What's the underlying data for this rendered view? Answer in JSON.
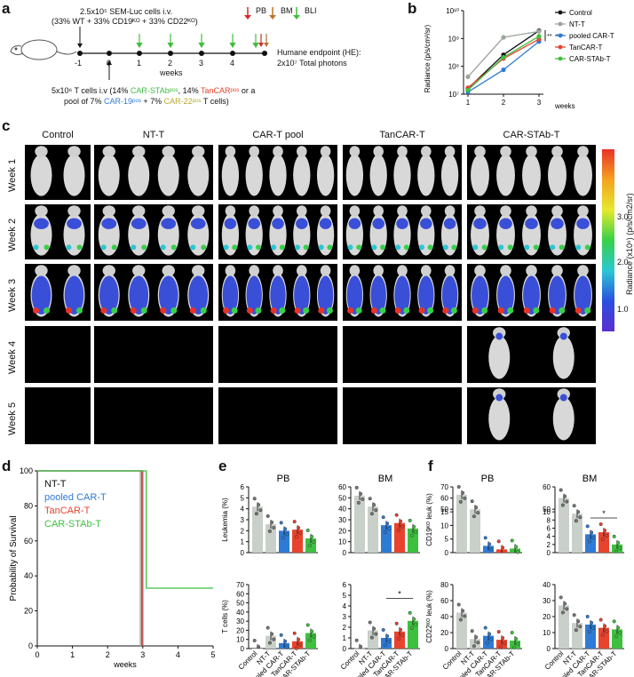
{
  "labels": {
    "a": "a",
    "b": "b",
    "c": "c",
    "d": "d",
    "e": "e",
    "f": "f"
  },
  "schema": {
    "cells_line1": "2.5x10⁵ SEM-Luc cells i.v.",
    "cells_line2": "(33% WT + 33% CD19ᴷᴼ + 33% CD22ᴷᴼ)",
    "legend_pb": "PB",
    "legend_bm": "BM",
    "legend_bli": "BLI",
    "ticks": [
      "-1",
      "0",
      "1",
      "2",
      "3",
      "4"
    ],
    "weeks": "weeks",
    "endpoint_line1": "Humane endpoint (HE):",
    "endpoint_line2": "2x10⁷ Total photons",
    "tcells_line1_a": "5x10⁶ T cells i.v (14% ",
    "tcells_line1_b": "CAR-STAbᵖᵒˢ",
    "tcells_line1_c": ", 14% ",
    "tcells_line1_d": "TanCARᵖᵒˢ",
    "tcells_line1_e": " or a",
    "tcells_line2_a": "pool of 7% ",
    "tcells_line2_b": "CAR-19ᵖᵒˢ",
    "tcells_line2_c": " + 7% ",
    "tcells_line2_d": "CAR-22ᵖᵒˢ",
    "tcells_line2_e": " T cells)"
  },
  "colors": {
    "control": "#111111",
    "ntt": "#9aa59a",
    "pooled": "#2e7bd6",
    "tancar": "#e8432e",
    "carstab": "#3fbf3f",
    "grey_bar": "#c9cfc9",
    "pb_arrow": "#d62b2b",
    "bm_arrow": "#b8762e",
    "bli_arrow": "#3fbf3f"
  },
  "panel_c": {
    "columns": [
      "Control",
      "NT-T",
      "CAR-T pool",
      "TanCAR-T",
      "CAR-STAb-T"
    ],
    "rows": [
      "Week 1",
      "Week 2",
      "Week 3",
      "Week 4",
      "Week 5"
    ],
    "colorbar_label": "Radiance (x10⁶) (p/s/cm2/sr)",
    "colorbar_ticks": [
      "3.0",
      "2.0",
      "1.0"
    ]
  },
  "chart_data": [
    {
      "id": "b",
      "type": "line",
      "ylabel": "Radiance (p/s/cm²/sr)",
      "xlabel": "weeks",
      "x": [
        1,
        2,
        3
      ],
      "y_scale": "log",
      "ylim": [
        10000000.0,
        10000000000.0
      ],
      "y_ticks": [
        "10⁷",
        "10⁸",
        "10⁹",
        "10¹⁰"
      ],
      "x_ticks": [
        "1",
        "2",
        "3"
      ],
      "series": [
        {
          "name": "Control",
          "values": [
            16000000.0,
            260000000.0,
            1900000000.0
          ]
        },
        {
          "name": "NT-T",
          "values": [
            42000000.0,
            1100000000.0,
            1800000000.0
          ]
        },
        {
          "name": "pooled CAR-T",
          "values": [
            12000000.0,
            75000000.0,
            780000000.0
          ]
        },
        {
          "name": "TanCAR-T",
          "values": [
            17000000.0,
            190000000.0,
            950000000.0
          ]
        },
        {
          "name": "CAR-STAb-T",
          "values": [
            14000000.0,
            210000000.0,
            1200000000.0
          ]
        }
      ],
      "annotations": [
        "**",
        "***"
      ]
    },
    {
      "id": "d",
      "type": "line",
      "ylabel": "Probability of Survival",
      "xlabel": "weeks",
      "xlim": [
        0,
        5
      ],
      "ylim": [
        0,
        100
      ],
      "x_ticks": [
        "0",
        "1",
        "2",
        "3",
        "4",
        "5"
      ],
      "y_ticks": [
        "0",
        "20",
        "40",
        "60",
        "80",
        "100"
      ],
      "series": [
        {
          "name": "NT-T",
          "values": [
            [
              0,
              100
            ],
            [
              2.93,
              100
            ],
            [
              2.93,
              0
            ]
          ]
        },
        {
          "name": "pooled CAR-T",
          "values": [
            [
              0,
              100
            ],
            [
              2.97,
              100
            ],
            [
              2.97,
              0
            ]
          ]
        },
        {
          "name": "TanCAR-T",
          "values": [
            [
              0,
              100
            ],
            [
              3.0,
              100
            ],
            [
              3.0,
              0
            ]
          ]
        },
        {
          "name": "CAR-STAb-T",
          "values": [
            [
              0,
              100
            ],
            [
              3.1,
              100
            ],
            [
              3.1,
              33
            ],
            [
              5,
              33
            ]
          ]
        }
      ]
    },
    {
      "id": "e-pb-leuk",
      "type": "bar",
      "title": "PB",
      "ylabel": "Leukemia (%)",
      "categories": [
        "Control",
        "NT-T",
        "pooled CAR-T",
        "TanCAR-T",
        "CAR-STAb-T"
      ],
      "values": [
        4.2,
        2.6,
        2.0,
        2.1,
        1.3
      ],
      "ylim": [
        0,
        6
      ],
      "y_ticks": [
        "0",
        "1",
        "2",
        "3",
        "4",
        "5",
        "6"
      ]
    },
    {
      "id": "e-bm-leuk",
      "type": "bar",
      "title": "BM",
      "ylabel": "",
      "categories": [
        "Control",
        "NT-T",
        "pooled CAR-T",
        "TanCAR-T",
        "CAR-STAb-T"
      ],
      "values": [
        52,
        42,
        25,
        27,
        22
      ],
      "ylim": [
        0,
        60
      ],
      "y_ticks": [
        "0",
        "10",
        "20",
        "30",
        "40",
        "50",
        "60"
      ]
    },
    {
      "id": "e-pb-tcell",
      "type": "bar",
      "title": "",
      "ylabel": "T cells (%)",
      "categories": [
        "Control",
        "NT-T",
        "pooled CAR-T",
        "TanCAR-T",
        "CAR-STAb-T"
      ],
      "values": [
        0,
        14,
        6,
        8,
        17
      ],
      "ylim": [
        0,
        70
      ],
      "y_ticks": [
        "0",
        "10",
        "20",
        "30",
        "40",
        "50",
        "60",
        "70"
      ]
    },
    {
      "id": "e-bm-tcell",
      "type": "bar",
      "title": "",
      "ylabel": "",
      "categories": [
        "Control",
        "NT-T",
        "pooled CAR-T",
        "TanCAR-T",
        "CAR-STAb-T"
      ],
      "values": [
        0.02,
        1.7,
        1.0,
        1.6,
        2.6
      ],
      "ylim": [
        0,
        6
      ],
      "y_ticks": [
        "0",
        "1",
        "2",
        "3",
        "4",
        "5",
        "6"
      ],
      "annotations": [
        "*"
      ]
    },
    {
      "id": "f-pb-cd19",
      "type": "bar",
      "title": "PB",
      "ylabel": "CD19ᴷᴼ leuk (%)",
      "categories": [
        "Control",
        "NT-T",
        "pooled CAR-T",
        "TanCAR-T",
        "CAR-STAb-T"
      ],
      "values": [
        63,
        50,
        2.5,
        1.2,
        1.5
      ],
      "y_ticks": [
        "0",
        "5",
        "10",
        "15",
        "50",
        "60",
        "70"
      ]
    },
    {
      "id": "f-bm-cd19",
      "type": "bar",
      "title": "BM",
      "ylabel": "",
      "categories": [
        "Control",
        "NT-T",
        "pooled CAR-T",
        "TanCAR-T",
        "CAR-STAb-T"
      ],
      "values": [
        55,
        48,
        4.5,
        5.0,
        2.0
      ],
      "y_ticks": [
        "0",
        "2",
        "4",
        "6",
        "8",
        "10",
        "50",
        "60"
      ],
      "annotations": [
        "*"
      ]
    },
    {
      "id": "f-pb-cd22",
      "type": "bar",
      "title": "",
      "ylabel": "CD22ᴷᴼ leuk (%)",
      "categories": [
        "Control",
        "NT-T",
        "pooled CAR-T",
        "TanCAR-T",
        "CAR-STAb-T"
      ],
      "values": [
        45,
        12,
        16,
        11,
        10
      ],
      "ylim": [
        0,
        80
      ],
      "y_ticks": [
        "0",
        "20",
        "40",
        "60",
        "80"
      ]
    },
    {
      "id": "f-bm-cd22",
      "type": "bar",
      "title": "",
      "ylabel": "",
      "categories": [
        "Control",
        "NT-T",
        "pooled CAR-T",
        "TanCAR-T",
        "CAR-STAb-T"
      ],
      "values": [
        27,
        16,
        15,
        13,
        12
      ],
      "ylim": [
        0,
        40
      ],
      "y_ticks": [
        "0",
        "10",
        "20",
        "30",
        "40"
      ]
    }
  ]
}
